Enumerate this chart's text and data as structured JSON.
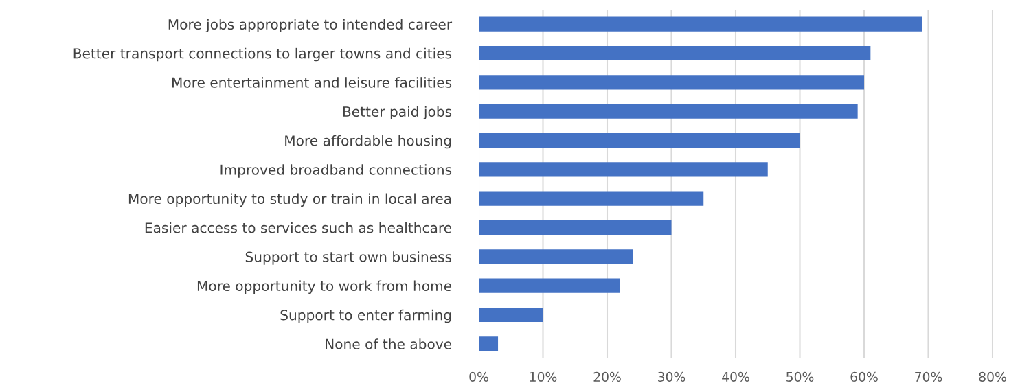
{
  "chart_data": {
    "type": "bar",
    "orientation": "horizontal",
    "categories": [
      "More jobs appropriate to intended career",
      "Better transport connections to larger towns and cities",
      "More entertainment and leisure facilities",
      "Better paid jobs",
      "More affordable housing",
      "Improved broadband connections",
      "More opportunity to study or train in local area",
      "Easier access to services such as healthcare",
      "Support to start own business",
      "More opportunity to work from home",
      "Support to enter farming",
      "None of the above"
    ],
    "values": [
      69,
      61,
      60,
      59,
      50,
      45,
      35,
      30,
      24,
      22,
      10,
      3
    ],
    "color": "#4472c4",
    "xlim": [
      0,
      80
    ],
    "xticks": [
      {
        "value": 0,
        "label": "0%"
      },
      {
        "value": 10,
        "label": "10%"
      },
      {
        "value": 20,
        "label": "20%"
      },
      {
        "value": 30,
        "label": "30%"
      },
      {
        "value": 40,
        "label": "40%"
      },
      {
        "value": 50,
        "label": "50%"
      },
      {
        "value": 60,
        "label": "60%"
      },
      {
        "value": 70,
        "label": "70%"
      },
      {
        "value": 80,
        "label": "80%"
      }
    ],
    "grid": "x",
    "legend": false
  }
}
